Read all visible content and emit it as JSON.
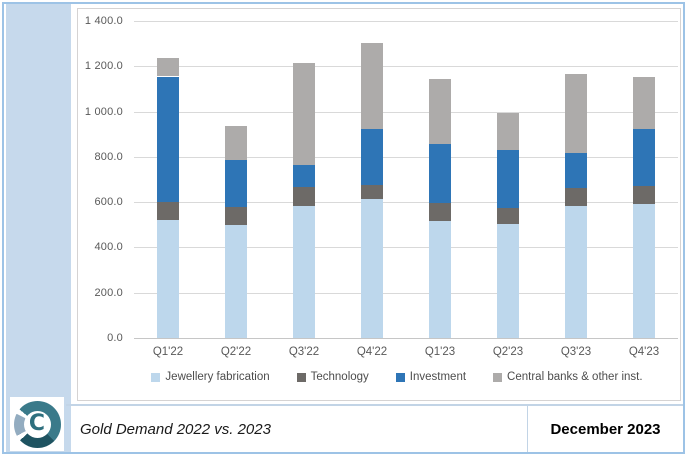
{
  "chart_data": {
    "type": "bar",
    "stacked": true,
    "categories": [
      "Q1'22",
      "Q2'22",
      "Q3'22",
      "Q4'22",
      "Q1'23",
      "Q2'23",
      "Q3'23",
      "Q4'23"
    ],
    "series": [
      {
        "name": "Jewellery fabrication",
        "color": "#BDD7EC",
        "values": [
          520,
          500,
          585,
          615,
          515,
          505,
          585,
          590
        ]
      },
      {
        "name": "Technology",
        "color": "#6D6A67",
        "values": [
          80,
          78,
          80,
          60,
          80,
          70,
          78,
          80
        ]
      },
      {
        "name": "Investment",
        "color": "#2E75B6",
        "values": [
          555,
          210,
          98,
          250,
          263,
          255,
          152,
          252
        ]
      },
      {
        "name": "Central banks & other inst.",
        "color": "#ADABAA",
        "values": [
          83,
          150,
          452,
          378,
          287,
          162,
          353,
          230
        ]
      }
    ],
    "ylim": [
      0,
      1400
    ],
    "ytick_labels": [
      "1 400.0",
      "1 200.0",
      "1 000.0",
      "800.0",
      "600.0",
      "400.0",
      "200.0",
      "0.0"
    ],
    "grid": true,
    "legend_position": "bottom"
  },
  "footer": {
    "title": "Gold Demand 2022 vs. 2023",
    "date": "December 2023",
    "logo_letter": "C"
  },
  "colors": {
    "frame_border": "#9DC3E6",
    "left_band": "#C6D9EC",
    "gridline": "#D9D9D9",
    "axis_text": "#595959"
  }
}
